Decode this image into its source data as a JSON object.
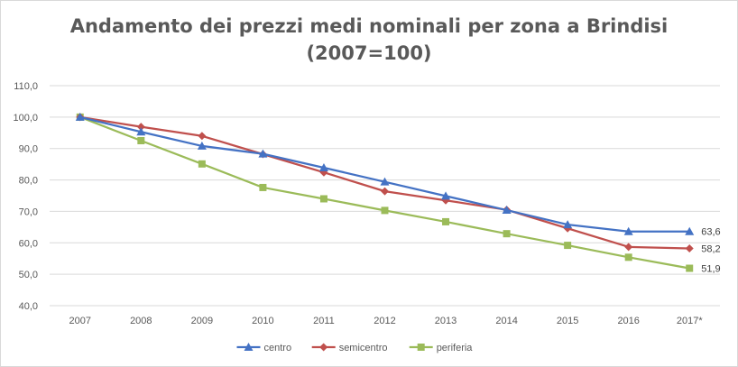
{
  "chart_data": {
    "type": "line",
    "title_line1": "Andamento dei prezzi medi nominali per zona a Brindisi",
    "title_line2": "(2007=100)",
    "xlabel": "",
    "ylabel": "",
    "categories": [
      "2007",
      "2008",
      "2009",
      "2010",
      "2011",
      "2012",
      "2013",
      "2014",
      "2015",
      "2016",
      "2017*"
    ],
    "ylim": [
      40,
      110
    ],
    "yticks": [
      40,
      50,
      60,
      70,
      80,
      90,
      100,
      110
    ],
    "ytick_labels": [
      "40,0",
      "50,0",
      "60,0",
      "70,0",
      "80,0",
      "90,0",
      "100,0",
      "110,0"
    ],
    "grid": true,
    "legend_position": "bottom",
    "series": [
      {
        "name": "centro",
        "color": "#4472c4",
        "marker": "triangle",
        "values": [
          100,
          95.3,
          90.8,
          88.3,
          83.9,
          79.4,
          74.9,
          70.4,
          65.8,
          63.6,
          63.6
        ],
        "end_label": "63,6"
      },
      {
        "name": "semicentro",
        "color": "#c0504d",
        "marker": "diamond",
        "values": [
          100,
          96.9,
          94.0,
          88.2,
          82.4,
          76.4,
          73.5,
          70.5,
          64.6,
          58.7,
          58.2
        ],
        "end_label": "58,2"
      },
      {
        "name": "periferia",
        "color": "#9bbb59",
        "marker": "square",
        "values": [
          100,
          92.5,
          85.1,
          77.6,
          74.0,
          70.3,
          66.7,
          62.9,
          59.2,
          55.4,
          51.9
        ],
        "end_label": "51,9"
      }
    ]
  }
}
